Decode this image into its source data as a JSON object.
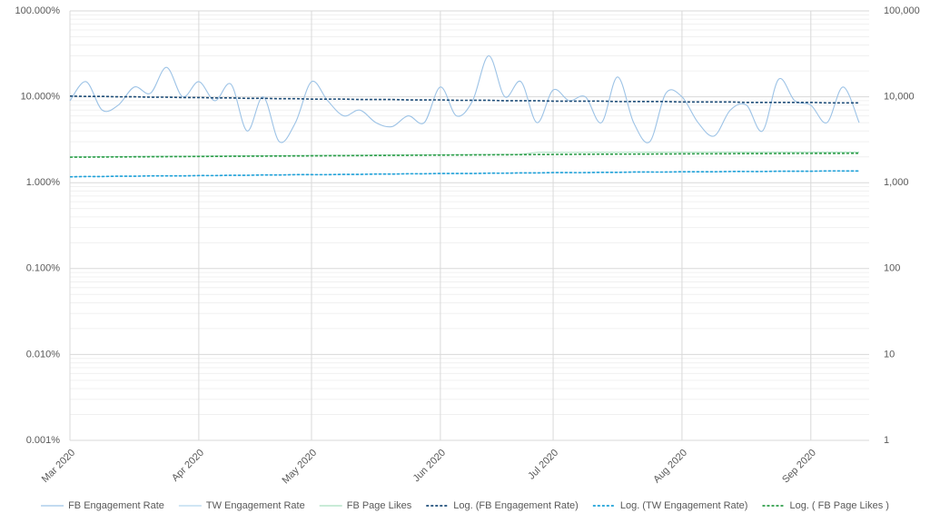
{
  "chart_data": {
    "type": "line",
    "log_y": true,
    "log_y2": true,
    "grid": true,
    "minor_grid": true,
    "legend": "bottom",
    "ylim": [
      0.001,
      100
    ],
    "yticks": [
      {
        "value": 0.001,
        "label": "0.001%"
      },
      {
        "value": 0.01,
        "label": "0.010%"
      },
      {
        "value": 0.1,
        "label": "0.100%"
      },
      {
        "value": 1,
        "label": "1.000%"
      },
      {
        "value": 10,
        "label": "10.000%"
      },
      {
        "value": 100,
        "label": "100.000%"
      }
    ],
    "y2lim": [
      1,
      100000
    ],
    "y2ticks": [
      1,
      10,
      100,
      {
        "value": 1000,
        "label": "1,000"
      },
      {
        "value": 10000,
        "label": "10,000"
      },
      {
        "value": 100000,
        "label": "100,000"
      }
    ],
    "categories": [
      "Mar 2020",
      null,
      null,
      null,
      null,
      null,
      null,
      null,
      "Apr 2020",
      null,
      null,
      null,
      null,
      null,
      null,
      "May 2020",
      null,
      null,
      null,
      null,
      null,
      null,
      null,
      "Jun 2020",
      null,
      null,
      null,
      null,
      null,
      null,
      "Jul 2020",
      null,
      null,
      null,
      null,
      null,
      null,
      null,
      "Aug 2020",
      null,
      null,
      null,
      null,
      null,
      null,
      null,
      "Sep 2020",
      null,
      null,
      null
    ],
    "series": [
      {
        "name": "FB Engagement Rate",
        "color": "#9dc3e6",
        "dash": false,
        "values": [
          9,
          15,
          7,
          8,
          13,
          11,
          22,
          10,
          15,
          9,
          14,
          4,
          10,
          3,
          5,
          15,
          9,
          6,
          7,
          5,
          4.5,
          6,
          5,
          13,
          6,
          9,
          30,
          10,
          15,
          5,
          12,
          9,
          10,
          5,
          17,
          5,
          3,
          11,
          10,
          5,
          3.5,
          7,
          8,
          4,
          16,
          9,
          8,
          5,
          13,
          5
        ]
      },
      {
        "name": "TW Engagement Rate",
        "color": "#b4d7ee",
        "dash": false,
        "values": [
          1.17,
          1.18,
          1.18,
          1.19,
          1.19,
          1.2,
          1.2,
          1.2,
          1.21,
          1.21,
          1.22,
          1.22,
          1.23,
          1.23,
          1.24,
          1.24,
          1.24,
          1.25,
          1.25,
          1.26,
          1.26,
          1.27,
          1.27,
          1.28,
          1.28,
          1.28,
          1.29,
          1.29,
          1.3,
          1.3,
          1.31,
          1.31,
          1.31,
          1.32,
          1.32,
          1.33,
          1.33,
          1.33,
          1.34,
          1.34,
          1.34,
          1.35,
          1.35,
          1.35,
          1.36,
          1.36,
          1.36,
          1.37,
          1.37,
          1.37
        ]
      },
      {
        "name": "FB Page Likes",
        "color": "#a9dfbf",
        "dash": false,
        "axis": "y2",
        "values": [
          2000,
          2005,
          2010,
          2015,
          2020,
          2025,
          2030,
          2035,
          2040,
          2045,
          2050,
          2055,
          2060,
          2065,
          2070,
          2075,
          2080,
          2085,
          2090,
          2095,
          2100,
          2105,
          2110,
          2115,
          2120,
          2125,
          2130,
          2135,
          2140,
          2250,
          2250,
          2250,
          2250,
          2255,
          2255,
          2255,
          2260,
          2260,
          2260,
          2260,
          2265,
          2265,
          2265,
          2265,
          2270,
          2270,
          2270,
          2270,
          2270,
          2270
        ]
      },
      {
        "name": "Log. (FB Engagement Rate)",
        "color": "#1f4e79",
        "dash": true,
        "values": [
          10.2,
          10.1,
          10.1,
          10.0,
          10.0,
          9.9,
          9.9,
          9.8,
          9.8,
          9.7,
          9.7,
          9.6,
          9.6,
          9.5,
          9.5,
          9.4,
          9.4,
          9.4,
          9.3,
          9.3,
          9.3,
          9.2,
          9.2,
          9.2,
          9.1,
          9.1,
          9.1,
          9.0,
          9.0,
          9.0,
          8.9,
          8.9,
          8.9,
          8.9,
          8.8,
          8.8,
          8.8,
          8.8,
          8.7,
          8.7,
          8.7,
          8.7,
          8.6,
          8.6,
          8.6,
          8.6,
          8.6,
          8.5,
          8.5,
          8.5
        ]
      },
      {
        "name": "Log. (TW Engagement Rate)",
        "color": "#1fa2d8",
        "dash": true,
        "values": [
          1.17,
          1.18,
          1.18,
          1.19,
          1.19,
          1.2,
          1.2,
          1.2,
          1.21,
          1.21,
          1.22,
          1.22,
          1.23,
          1.23,
          1.24,
          1.24,
          1.24,
          1.25,
          1.25,
          1.26,
          1.26,
          1.27,
          1.27,
          1.28,
          1.28,
          1.28,
          1.29,
          1.29,
          1.3,
          1.3,
          1.31,
          1.31,
          1.31,
          1.32,
          1.32,
          1.33,
          1.33,
          1.33,
          1.34,
          1.34,
          1.34,
          1.35,
          1.35,
          1.35,
          1.36,
          1.36,
          1.36,
          1.37,
          1.37,
          1.37
        ]
      },
      {
        "name": "Log. ( FB Page Likes )",
        "color": "#2e9e4a",
        "dash": true,
        "axis": "y2",
        "values": [
          1980,
          1985,
          1990,
          1995,
          2000,
          2005,
          2010,
          2015,
          2020,
          2025,
          2030,
          2035,
          2040,
          2045,
          2050,
          2055,
          2060,
          2065,
          2070,
          2075,
          2080,
          2085,
          2090,
          2095,
          2100,
          2105,
          2110,
          2115,
          2120,
          2125,
          2130,
          2135,
          2140,
          2145,
          2150,
          2150,
          2155,
          2160,
          2165,
          2170,
          2170,
          2175,
          2180,
          2180,
          2185,
          2190,
          2190,
          2195,
          2195,
          2200
        ]
      }
    ]
  }
}
